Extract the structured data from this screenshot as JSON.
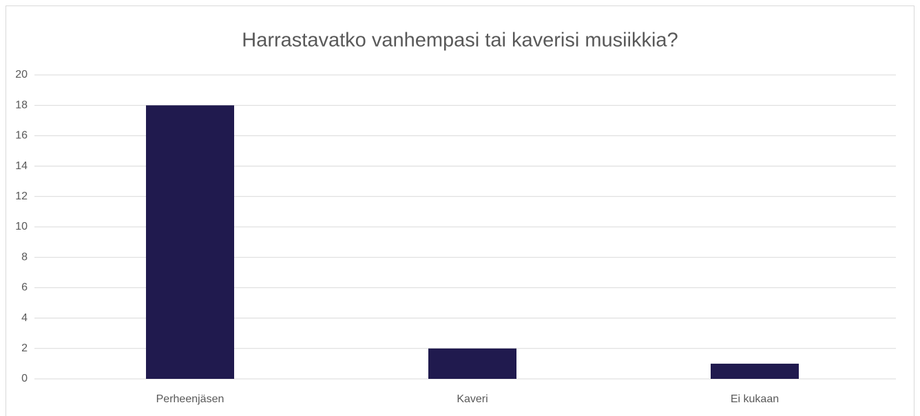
{
  "chart_data": {
    "type": "bar",
    "title": "Harrastavatko vanhempasi tai kaverisi musiikkia?",
    "categories": [
      "Perheenjäsen",
      "Kaveri",
      "Ei kukaan"
    ],
    "values": [
      18,
      2,
      1
    ],
    "color": "#201a4e",
    "ylim": [
      0,
      20
    ],
    "yticks": [
      0,
      2,
      4,
      6,
      8,
      10,
      12,
      14,
      16,
      18,
      20
    ],
    "grid": true
  }
}
